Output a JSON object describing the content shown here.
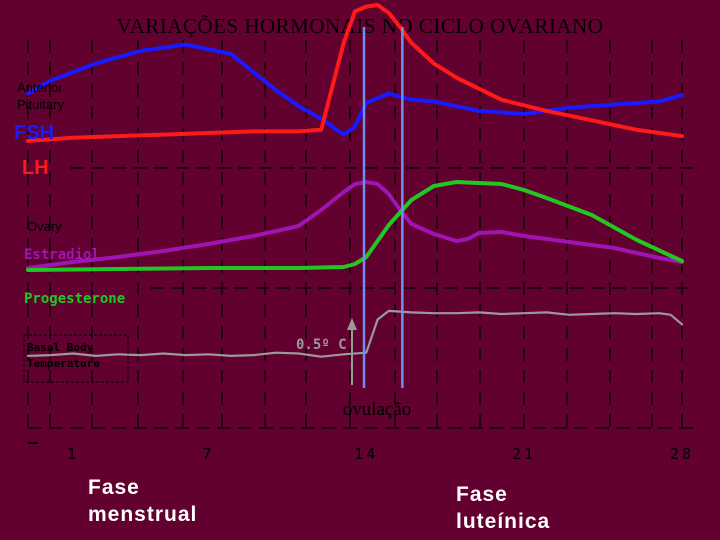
{
  "title": "VARIAÇÕES HORMONAIS NO CICLO OVARIANO",
  "phases": {
    "menstrual_line1": "Fase",
    "menstrual_line2": "menstrual",
    "luteal_line1": "Fase",
    "luteal_line2": "luteínica"
  },
  "chart_data": {
    "type": "line",
    "title": "VARIAÇÕES HORMONAIS NO CICLO OVARIANO",
    "xlabel": "",
    "ylabel": "",
    "xlim": [
      -1,
      28
    ],
    "x_ticks": [
      1,
      7,
      14,
      21,
      28
    ],
    "x_tick_labels": [
      "1",
      "7",
      "14",
      "21",
      "28"
    ],
    "vertical_markers": [
      13.9,
      15.6
    ],
    "annotations": {
      "ovulation": "ovulação",
      "temp_rise": "0.5º C",
      "anterior_pituitary": "Anterior\nPituitary",
      "ovary": "Ovary",
      "bbt_box": "Basal Body\nTemperature"
    },
    "panels": [
      {
        "name": "Anterior Pituitary",
        "series": [
          {
            "name": "FSH",
            "color": "#1a1aff",
            "x": [
              -1,
              0,
              2,
              4,
              6,
              8,
              10,
              11,
              12,
              13,
              13.5,
              14,
              15,
              16,
              17,
              19,
              21,
              23,
              25,
              27,
              28
            ],
            "y": [
              4.4,
              5.2,
              6.3,
              7.1,
              7.5,
              6.9,
              4.6,
              3.6,
              2.8,
              1.8,
              2.3,
              3.8,
              4.4,
              4.0,
              3.9,
              3.3,
              3.1,
              3.5,
              3.7,
              3.9,
              4.3
            ]
          },
          {
            "name": "LH",
            "color": "#ff1a1a",
            "x": [
              -1,
              1,
              3,
              5,
              7,
              9,
              11,
              12,
              13,
              13.5,
              14,
              14.5,
              15,
              15.5,
              16,
              17,
              18,
              19,
              20,
              22,
              24,
              26,
              28
            ],
            "y": [
              1.4,
              1.6,
              1.7,
              1.8,
              1.9,
              2.0,
              2.0,
              2.1,
              7.6,
              9.6,
              9.9,
              10.0,
              9.5,
              8.6,
              7.6,
              6.3,
              5.4,
              4.7,
              4.0,
              3.3,
              2.7,
              2.1,
              1.7
            ]
          }
        ]
      },
      {
        "name": "Ovary",
        "series": [
          {
            "name": "Estradiol",
            "color": "#a014b4",
            "x": [
              -1,
              1,
              3,
              5,
              7,
              9,
              11,
              12,
              13,
              13.5,
              14,
              14.5,
              15,
              15.5,
              16,
              17,
              18,
              18.5,
              19,
              20,
              21,
              23,
              25,
              27,
              28
            ],
            "y": [
              1.2,
              1.8,
              2.3,
              2.9,
              3.6,
              4.4,
              5.4,
              7.0,
              8.8,
              9.6,
              9.8,
              9.6,
              8.6,
              7.0,
              5.6,
              4.6,
              3.9,
              4.1,
              4.7,
              4.8,
              4.4,
              3.8,
              3.2,
              2.2,
              1.8
            ]
          },
          {
            "name": "Progesterone",
            "color": "#22c822",
            "x": [
              -1,
              1,
              3,
              5,
              7,
              9,
              11,
              12,
              13,
              13.5,
              14,
              15,
              16,
              17,
              18,
              20,
              21,
              22,
              24,
              26,
              28
            ],
            "y": [
              1.0,
              1.05,
              1.1,
              1.15,
              1.2,
              1.2,
              1.2,
              1.25,
              1.3,
              1.6,
              2.3,
              5.5,
              8.0,
              9.4,
              9.8,
              9.6,
              9.0,
              8.2,
              6.5,
              4.0,
              1.9
            ]
          }
        ]
      },
      {
        "name": "Basal Body Temperature",
        "series": [
          {
            "name": "Basal Body Temperature",
            "color": "#9a9a9a",
            "x": [
              -1,
              0,
              1,
              2,
              3,
              4,
              5,
              6,
              7,
              8,
              9,
              10,
              11,
              12,
              13,
              14,
              14.5,
              15,
              16,
              17,
              18,
              19,
              20,
              21,
              22,
              23,
              24,
              25,
              26,
              27,
              27.5,
              28
            ],
            "y": [
              0.28,
              0.29,
              0.31,
              0.28,
              0.3,
              0.29,
              0.31,
              0.29,
              0.3,
              0.28,
              0.29,
              0.32,
              0.31,
              0.27,
              0.3,
              0.32,
              0.74,
              0.85,
              0.83,
              0.82,
              0.82,
              0.83,
              0.81,
              0.82,
              0.83,
              0.8,
              0.81,
              0.82,
              0.81,
              0.82,
              0.8,
              0.68
            ]
          }
        ]
      }
    ]
  }
}
